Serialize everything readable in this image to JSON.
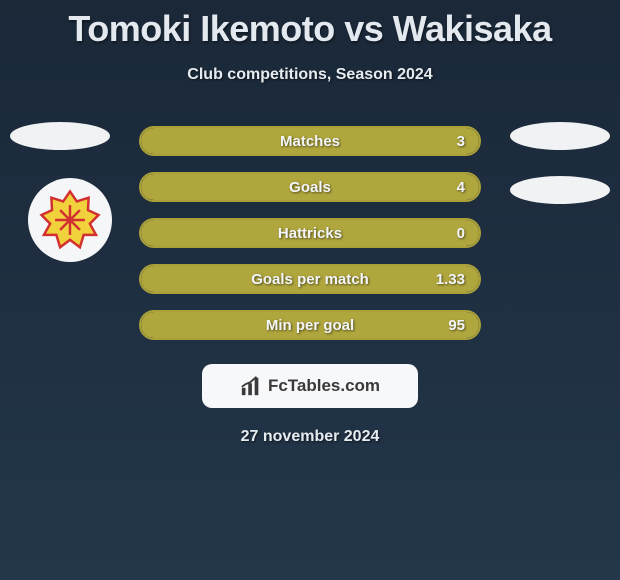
{
  "title": "Tomoki Ikemoto vs Wakisaka",
  "subtitle": "Club competitions, Season 2024",
  "date": "27 november 2024",
  "brand": "FcTables.com",
  "colors": {
    "bar_border": "#a9a03a",
    "bar_fill": "#b0a63e",
    "bg_top": "#1a2838",
    "bg_bottom": "#23364a",
    "text": "#e6ebf0",
    "brand_bg": "#f7f8fa"
  },
  "stats": [
    {
      "label": "Matches",
      "value": "3",
      "fill_pct": 100
    },
    {
      "label": "Goals",
      "value": "4",
      "fill_pct": 100
    },
    {
      "label": "Hattricks",
      "value": "0",
      "fill_pct": 100
    },
    {
      "label": "Goals per match",
      "value": "1.33",
      "fill_pct": 100
    },
    {
      "label": "Min per goal",
      "value": "95",
      "fill_pct": 100
    }
  ]
}
